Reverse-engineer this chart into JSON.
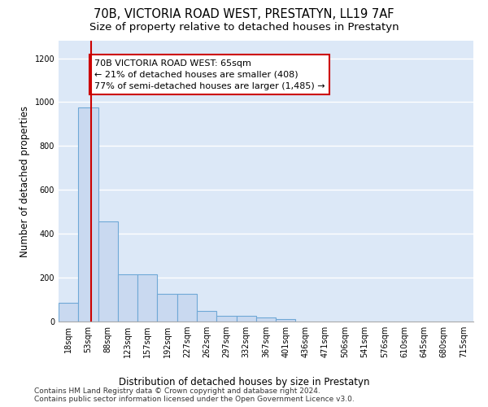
{
  "title": "70B, VICTORIA ROAD WEST, PRESTATYN, LL19 7AF",
  "subtitle": "Size of property relative to detached houses in Prestatyn",
  "xlabel_bottom": "Distribution of detached houses by size in Prestatyn",
  "ylabel": "Number of detached properties",
  "footnote": "Contains HM Land Registry data © Crown copyright and database right 2024.\nContains public sector information licensed under the Open Government Licence v3.0.",
  "categories": [
    "18sqm",
    "53sqm",
    "88sqm",
    "123sqm",
    "157sqm",
    "192sqm",
    "227sqm",
    "262sqm",
    "297sqm",
    "332sqm",
    "367sqm",
    "401sqm",
    "436sqm",
    "471sqm",
    "506sqm",
    "541sqm",
    "576sqm",
    "610sqm",
    "645sqm",
    "680sqm",
    "715sqm"
  ],
  "values": [
    85,
    975,
    455,
    215,
    215,
    125,
    125,
    50,
    25,
    25,
    20,
    12,
    0,
    0,
    0,
    0,
    0,
    0,
    0,
    0,
    0
  ],
  "bar_color": "#c9d9f0",
  "bar_edge_color": "#6fa8d6",
  "bar_edge_width": 0.8,
  "annotation_text": "70B VICTORIA ROAD WEST: 65sqm\n← 21% of detached houses are smaller (408)\n77% of semi-detached houses are larger (1,485) →",
  "annotation_box_color": "#cc0000",
  "vline_x_index": 1.15,
  "vline_color": "#cc0000",
  "ylim": [
    0,
    1280
  ],
  "yticks": [
    0,
    200,
    400,
    600,
    800,
    1000,
    1200
  ],
  "bg_color": "#dce8f7",
  "grid_color": "#ffffff",
  "title_fontsize": 10.5,
  "subtitle_fontsize": 9.5,
  "annotation_fontsize": 8,
  "tick_fontsize": 7,
  "ylabel_fontsize": 8.5,
  "xlabel_fontsize": 8.5,
  "footnote_fontsize": 6.5
}
